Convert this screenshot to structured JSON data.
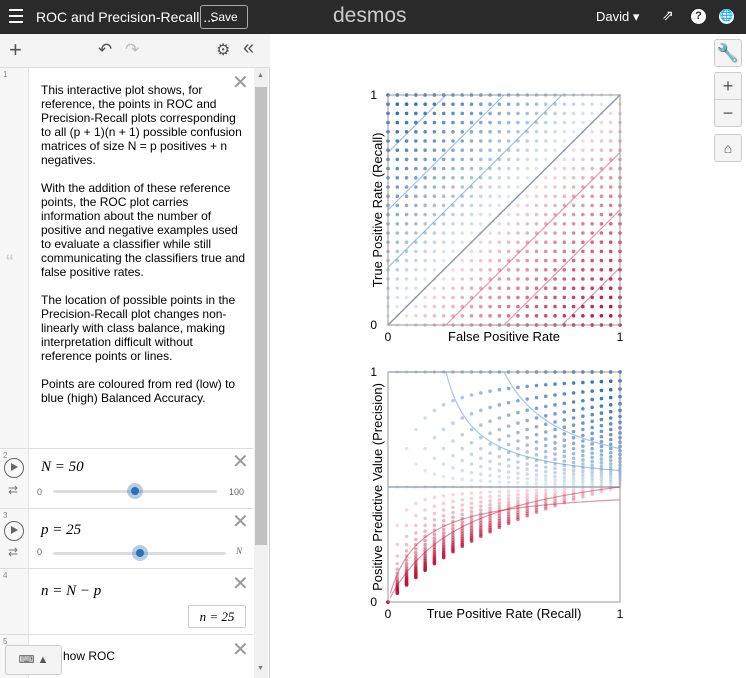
{
  "header": {
    "title": "ROC and Precision-Recall ...",
    "save": "Save",
    "logo": "desmos",
    "user": "David"
  },
  "expressions": [
    {
      "index": "1",
      "paragraphs": [
        "This interactive plot shows, for reference, the points in ROC and Precision-Recall plots corresponding to all (p + 1)(n + 1) possible confusion matrices of size N = p positives + n negatives.",
        "With the addition of these reference points, the ROC plot carries information about the number of positive and negative examples used to evaluate a classifier while still communicating the classifiers true and false positive rates.",
        "The location of possible points in the Precision-Recall plot changes non-linearly with class balance, making interpretation difficult without reference points or lines.",
        "Points are coloured from red (low) to blue (high) Balanced Accuracy."
      ]
    },
    {
      "index": "2",
      "latex": "N = 50",
      "slider_min": "0",
      "slider_max": "100"
    },
    {
      "index": "3",
      "latex": "p = 25",
      "slider_min": "0",
      "slider_max": "N"
    },
    {
      "index": "4",
      "latex": "n = N − p",
      "result": "n = 25"
    },
    {
      "index": "5",
      "text": "how ROC"
    }
  ],
  "graphs": [
    {
      "x_label": "False Positive Rate",
      "y_label": "True Positive Rate (Recall)",
      "x_ticks": [
        0,
        1
      ],
      "y_ticks": [
        0,
        1
      ]
    },
    {
      "x_label": "True Positive Rate (Recall)",
      "y_label": "Positive Predictive Value (Precision)",
      "x_ticks": [
        0,
        1
      ],
      "y_ticks": [
        0,
        1
      ]
    }
  ]
}
